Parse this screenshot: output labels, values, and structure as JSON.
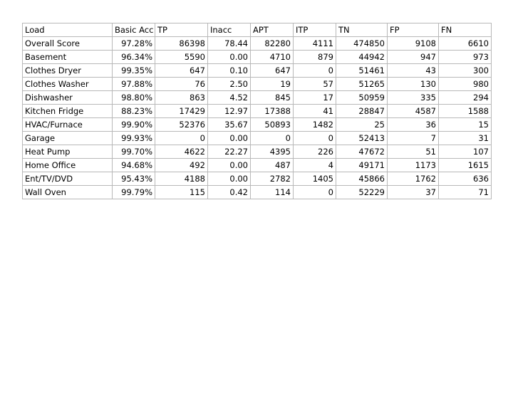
{
  "table": {
    "columns": [
      "Load",
      "Basic Acc",
      "TP",
      "Inacc",
      "APT",
      "ITP",
      "TN",
      "FP",
      "FN"
    ],
    "rows": [
      [
        "Overall Score",
        "97.28%",
        "86398",
        "78.44",
        "82280",
        "4111",
        "474850",
        "9108",
        "6610"
      ],
      [
        "Basement",
        "96.34%",
        "5590",
        "0.00",
        "4710",
        "879",
        "44942",
        "947",
        "973"
      ],
      [
        "Clothes Dryer",
        "99.35%",
        "647",
        "0.10",
        "647",
        "0",
        "51461",
        "43",
        "300"
      ],
      [
        "Clothes Washer",
        "97.88%",
        "76",
        "2.50",
        "19",
        "57",
        "51265",
        "130",
        "980"
      ],
      [
        "Dishwasher",
        "98.80%",
        "863",
        "4.52",
        "845",
        "17",
        "50959",
        "335",
        "294"
      ],
      [
        "Kitchen Fridge",
        "88.23%",
        "17429",
        "12.97",
        "17388",
        "41",
        "28847",
        "4587",
        "1588"
      ],
      [
        "HVAC/Furnace",
        "99.90%",
        "52376",
        "35.67",
        "50893",
        "1482",
        "25",
        "36",
        "15"
      ],
      [
        "Garage",
        "99.93%",
        "0",
        "0.00",
        "0",
        "0",
        "52413",
        "7",
        "31"
      ],
      [
        "Heat Pump",
        "99.70%",
        "4622",
        "22.27",
        "4395",
        "226",
        "47672",
        "51",
        "107"
      ],
      [
        "Home Office",
        "94.68%",
        "492",
        "0.00",
        "487",
        "4",
        "49171",
        "1173",
        "1615"
      ],
      [
        "Ent/TV/DVD",
        "95.43%",
        "4188",
        "0.00",
        "2782",
        "1405",
        "45866",
        "1762",
        "636"
      ],
      [
        "Wall Oven",
        "99.79%",
        "115",
        "0.42",
        "114",
        "0",
        "52229",
        "37",
        "71"
      ]
    ]
  }
}
